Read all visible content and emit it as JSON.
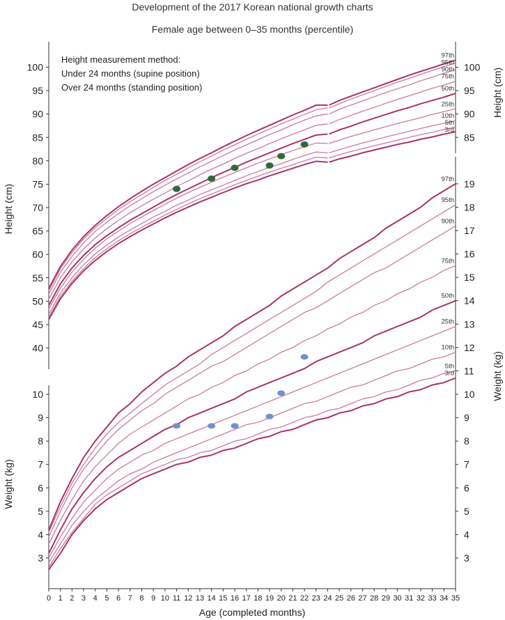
{
  "title": "Development of the 2017 Korean national growth charts",
  "subtitle": "Female age between 0–35 months (percentile)",
  "notes": [
    "Height measurement method:",
    "Under 24 months (supine position)",
    "Over 24 months (standing position)"
  ],
  "colors": {
    "curve_major": "#a8326c",
    "curve_minor": "#c97aa3",
    "height_marker": "#2e6b38",
    "weight_marker": "#6f93c9",
    "axis": "#333333"
  },
  "chart_data": {
    "type": "line",
    "xlabel": "Age (completed months)",
    "x_ticks": [
      0,
      1,
      2,
      3,
      4,
      5,
      6,
      7,
      8,
      9,
      10,
      11,
      12,
      13,
      14,
      15,
      16,
      17,
      18,
      19,
      20,
      21,
      22,
      23,
      24,
      25,
      26,
      27,
      28,
      29,
      30,
      31,
      32,
      33,
      34,
      35
    ],
    "xlim": [
      0,
      35
    ],
    "percentiles": [
      "3rd",
      "5th",
      "10th",
      "25th",
      "50th",
      "75th",
      "90th",
      "95th",
      "97th"
    ],
    "height": {
      "ylabel_left": "Height (cm)",
      "ylabel_right": "Height (cm)",
      "left_ticks": [
        40,
        45,
        50,
        55,
        60,
        65,
        70,
        75,
        80,
        85,
        90,
        95,
        100
      ],
      "right_ticks": [
        85,
        90,
        95,
        100
      ],
      "ylim": [
        35,
        105
      ],
      "ages": [
        0,
        1,
        2,
        3,
        4,
        5,
        6,
        7,
        8,
        9,
        10,
        11,
        12,
        13,
        14,
        15,
        16,
        17,
        18,
        19,
        20,
        21,
        22,
        23,
        24,
        25,
        26,
        27,
        28,
        29,
        30,
        31,
        32,
        33,
        34,
        35
      ],
      "series": [
        {
          "name": "3rd",
          "values": [
            46.1,
            50.5,
            53.8,
            56.5,
            58.7,
            60.6,
            62.3,
            63.8,
            65.2,
            66.5,
            67.8,
            69.0,
            70.1,
            71.2,
            72.2,
            73.2,
            74.2,
            75.1,
            75.9,
            76.8,
            77.6,
            78.4,
            79.2,
            79.9,
            79.7,
            80.4,
            81.0,
            81.7,
            82.3,
            82.9,
            83.5,
            84.0,
            84.6,
            85.1,
            85.7,
            86.2
          ]
        },
        {
          "name": "5th",
          "values": [
            46.6,
            51.0,
            54.3,
            57.0,
            59.3,
            61.2,
            62.9,
            64.4,
            65.8,
            67.1,
            68.4,
            69.6,
            70.8,
            71.9,
            72.9,
            73.9,
            74.9,
            75.8,
            76.7,
            77.6,
            78.4,
            79.2,
            80.0,
            80.8,
            80.6,
            81.3,
            82.0,
            82.6,
            83.2,
            83.8,
            84.4,
            85.0,
            85.6,
            86.1,
            86.7,
            87.2
          ]
        },
        {
          "name": "10th",
          "values": [
            47.2,
            51.7,
            55.0,
            57.8,
            60.1,
            62.0,
            63.7,
            65.2,
            66.6,
            68.0,
            69.2,
            70.5,
            71.6,
            72.8,
            73.8,
            74.8,
            75.8,
            76.8,
            77.7,
            78.6,
            79.4,
            80.3,
            81.1,
            81.9,
            81.7,
            82.4,
            83.1,
            83.8,
            84.4,
            85.1,
            85.7,
            86.3,
            86.9,
            87.5,
            88.0,
            88.6
          ]
        },
        {
          "name": "25th",
          "values": [
            48.3,
            52.8,
            56.2,
            59.0,
            61.3,
            63.3,
            65.0,
            66.6,
            68.0,
            69.4,
            70.7,
            72.0,
            73.2,
            74.3,
            75.4,
            76.5,
            77.5,
            78.5,
            79.5,
            80.4,
            81.3,
            82.2,
            83.0,
            83.8,
            83.7,
            84.4,
            85.2,
            85.9,
            86.6,
            87.3,
            88.0,
            88.6,
            89.2,
            89.9,
            90.5,
            91.1
          ]
        },
        {
          "name": "50th",
          "values": [
            49.1,
            53.7,
            57.1,
            59.8,
            62.1,
            64.0,
            65.7,
            67.3,
            68.7,
            70.1,
            71.5,
            72.8,
            74.0,
            75.2,
            76.4,
            77.5,
            78.6,
            79.7,
            80.7,
            81.7,
            82.7,
            83.7,
            84.6,
            85.5,
            85.7,
            86.6,
            87.4,
            88.3,
            89.1,
            89.9,
            90.7,
            91.4,
            92.2,
            92.9,
            93.6,
            94.4
          ]
        },
        {
          "name": "75th",
          "values": [
            50.4,
            55.0,
            58.4,
            61.2,
            63.5,
            65.5,
            67.3,
            68.9,
            70.4,
            71.8,
            73.1,
            74.5,
            75.7,
            77.0,
            78.2,
            79.3,
            80.5,
            81.6,
            82.6,
            83.7,
            84.7,
            85.7,
            86.6,
            87.6,
            87.9,
            88.8,
            89.7,
            90.6,
            91.4,
            92.3,
            93.1,
            93.9,
            94.7,
            95.5,
            96.2,
            97.0
          ]
        },
        {
          "name": "90th",
          "values": [
            51.5,
            56.2,
            59.6,
            62.5,
            64.9,
            66.9,
            68.7,
            70.4,
            71.9,
            73.4,
            74.8,
            76.1,
            77.4,
            78.7,
            79.9,
            81.1,
            82.3,
            83.4,
            84.5,
            85.6,
            86.6,
            87.7,
            88.7,
            89.6,
            90.0,
            91.0,
            91.9,
            92.8,
            93.7,
            94.6,
            95.4,
            96.2,
            97.1,
            97.9,
            98.7,
            99.5
          ]
        },
        {
          "name": "95th",
          "values": [
            52.2,
            56.9,
            60.4,
            63.3,
            65.7,
            67.7,
            69.6,
            71.3,
            72.8,
            74.3,
            75.8,
            77.1,
            78.5,
            79.8,
            81.0,
            82.3,
            83.4,
            84.6,
            85.7,
            86.8,
            87.9,
            88.9,
            89.9,
            90.9,
            91.3,
            92.2,
            93.2,
            94.1,
            95.0,
            95.9,
            96.8,
            97.6,
            98.5,
            99.3,
            100.1,
            100.9
          ]
        },
        {
          "name": "97th",
          "values": [
            52.7,
            57.4,
            60.9,
            63.8,
            66.2,
            68.3,
            70.2,
            71.9,
            73.5,
            75.0,
            76.4,
            77.8,
            79.2,
            80.5,
            81.7,
            83.0,
            84.2,
            85.4,
            86.5,
            87.6,
            88.7,
            89.8,
            90.8,
            91.9,
            91.9,
            92.9,
            93.8,
            94.7,
            95.6,
            96.5,
            97.4,
            98.3,
            99.1,
            99.9,
            100.7,
            101.5
          ]
        }
      ],
      "patient_points": [
        {
          "x": 11,
          "y": 74.0
        },
        {
          "x": 14,
          "y": 76.2
        },
        {
          "x": 16,
          "y": 78.5
        },
        {
          "x": 19,
          "y": 79.0
        },
        {
          "x": 20,
          "y": 81.0
        },
        {
          "x": 22,
          "y": 83.5
        }
      ]
    },
    "weight": {
      "ylabel_left": "Weight (kg)",
      "ylabel_right": "Weight (kg)",
      "left_ticks": [
        3,
        4,
        5,
        6,
        7,
        8,
        9,
        10
      ],
      "right_ticks": [
        3,
        4,
        5,
        6,
        7,
        8,
        9,
        10,
        11,
        12,
        13,
        14,
        15,
        16,
        17,
        18,
        19
      ],
      "ylim": [
        2.2,
        19.6
      ],
      "ages": [
        0,
        1,
        2,
        3,
        4,
        5,
        6,
        7,
        8,
        9,
        10,
        11,
        12,
        13,
        14,
        15,
        16,
        17,
        18,
        19,
        20,
        21,
        22,
        23,
        24,
        25,
        26,
        27,
        28,
        29,
        30,
        31,
        32,
        33,
        34,
        35
      ],
      "series": [
        {
          "name": "3rd",
          "values": [
            2.5,
            3.2,
            4.0,
            4.6,
            5.1,
            5.5,
            5.8,
            6.1,
            6.4,
            6.6,
            6.8,
            7.0,
            7.1,
            7.3,
            7.4,
            7.6,
            7.7,
            7.9,
            8.1,
            8.2,
            8.4,
            8.5,
            8.7,
            8.9,
            9.0,
            9.2,
            9.3,
            9.5,
            9.6,
            9.8,
            9.9,
            10.1,
            10.2,
            10.4,
            10.5,
            10.7
          ]
        },
        {
          "name": "5th",
          "values": [
            2.6,
            3.4,
            4.1,
            4.7,
            5.3,
            5.7,
            6.0,
            6.3,
            6.6,
            6.8,
            7.0,
            7.2,
            7.3,
            7.5,
            7.6,
            7.8,
            8.0,
            8.1,
            8.3,
            8.5,
            8.6,
            8.8,
            9.0,
            9.1,
            9.3,
            9.4,
            9.6,
            9.8,
            9.9,
            10.1,
            10.2,
            10.4,
            10.6,
            10.7,
            10.9,
            11.0
          ]
        },
        {
          "name": "10th",
          "values": [
            2.8,
            3.6,
            4.4,
            5.0,
            5.5,
            5.9,
            6.3,
            6.6,
            6.8,
            7.1,
            7.3,
            7.5,
            7.7,
            7.9,
            8.1,
            8.3,
            8.5,
            8.7,
            8.8,
            9.0,
            9.2,
            9.4,
            9.6,
            9.7,
            9.9,
            10.1,
            10.3,
            10.4,
            10.6,
            10.8,
            11.0,
            11.1,
            11.3,
            11.5,
            11.6,
            11.8
          ]
        },
        {
          "name": "25th",
          "values": [
            3.0,
            3.9,
            4.7,
            5.4,
            5.9,
            6.4,
            6.8,
            7.1,
            7.4,
            7.6,
            7.9,
            8.1,
            8.3,
            8.5,
            8.7,
            8.9,
            9.1,
            9.3,
            9.5,
            9.7,
            9.9,
            10.1,
            10.3,
            10.5,
            10.7,
            10.9,
            11.1,
            11.3,
            11.5,
            11.7,
            11.9,
            12.1,
            12.3,
            12.5,
            12.7,
            12.9
          ]
        },
        {
          "name": "50th",
          "values": [
            3.2,
            4.2,
            5.1,
            5.8,
            6.4,
            6.9,
            7.3,
            7.6,
            7.9,
            8.2,
            8.5,
            8.7,
            9.0,
            9.2,
            9.4,
            9.6,
            9.8,
            10.1,
            10.3,
            10.5,
            10.7,
            10.9,
            11.1,
            11.4,
            11.6,
            11.8,
            12.0,
            12.2,
            12.5,
            12.7,
            12.9,
            13.1,
            13.3,
            13.6,
            13.8,
            14.0
          ]
        },
        {
          "name": "75th",
          "values": [
            3.6,
            4.6,
            5.5,
            6.3,
            6.9,
            7.4,
            7.9,
            8.3,
            8.6,
            8.9,
            9.2,
            9.5,
            9.8,
            10.0,
            10.3,
            10.5,
            10.8,
            11.0,
            11.3,
            11.5,
            11.8,
            12.0,
            12.3,
            12.5,
            12.8,
            13.0,
            13.3,
            13.5,
            13.8,
            14.0,
            14.3,
            14.5,
            14.8,
            15.0,
            15.3,
            15.5
          ]
        },
        {
          "name": "90th",
          "values": [
            3.9,
            5.0,
            6.0,
            6.8,
            7.4,
            8.0,
            8.5,
            8.9,
            9.3,
            9.6,
            10.0,
            10.3,
            10.6,
            10.9,
            11.2,
            11.4,
            11.7,
            12.0,
            12.3,
            12.6,
            12.9,
            13.2,
            13.5,
            13.7,
            14.0,
            14.3,
            14.6,
            14.9,
            15.2,
            15.4,
            15.7,
            16.0,
            16.3,
            16.6,
            16.9,
            17.2
          ]
        },
        {
          "name": "95th",
          "values": [
            4.1,
            5.2,
            6.2,
            7.0,
            7.7,
            8.3,
            8.8,
            9.2,
            9.6,
            10.0,
            10.4,
            10.7,
            11.0,
            11.3,
            11.7,
            12.0,
            12.3,
            12.6,
            12.9,
            13.2,
            13.5,
            13.8,
            14.1,
            14.4,
            14.8,
            15.1,
            15.4,
            15.7,
            16.0,
            16.3,
            16.6,
            16.9,
            17.2,
            17.5,
            17.8,
            18.1
          ]
        },
        {
          "name": "97th",
          "values": [
            4.2,
            5.4,
            6.4,
            7.3,
            8.0,
            8.6,
            9.2,
            9.6,
            10.1,
            10.5,
            10.9,
            11.2,
            11.6,
            11.9,
            12.2,
            12.5,
            12.9,
            13.2,
            13.5,
            13.8,
            14.2,
            14.5,
            14.8,
            15.1,
            15.4,
            15.8,
            16.1,
            16.4,
            16.7,
            17.1,
            17.4,
            17.7,
            18.0,
            18.4,
            18.7,
            19.0
          ]
        }
      ],
      "patient_points": [
        {
          "x": 11,
          "y": 8.65
        },
        {
          "x": 14,
          "y": 8.65
        },
        {
          "x": 16,
          "y": 8.65
        },
        {
          "x": 19,
          "y": 9.05
        },
        {
          "x": 20,
          "y": 10.05
        },
        {
          "x": 22,
          "y": 11.6
        }
      ]
    }
  }
}
